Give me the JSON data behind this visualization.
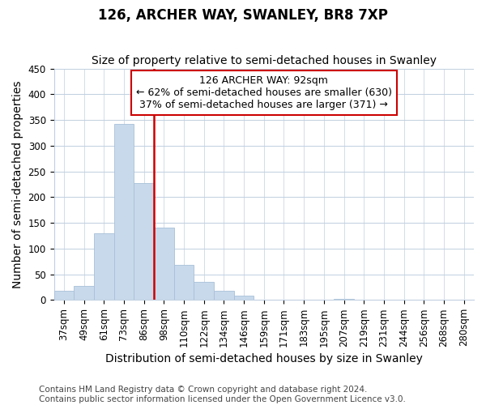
{
  "title": "126, ARCHER WAY, SWANLEY, BR8 7XP",
  "subtitle": "Size of property relative to semi-detached houses in Swanley",
  "xlabel": "Distribution of semi-detached houses by size in Swanley",
  "ylabel": "Number of semi-detached properties",
  "annotation_line1": "126 ARCHER WAY: 92sqm",
  "annotation_line2": "← 62% of semi-detached houses are smaller (630)",
  "annotation_line3": "37% of semi-detached houses are larger (371) →",
  "footer1": "Contains HM Land Registry data © Crown copyright and database right 2024.",
  "footer2": "Contains public sector information licensed under the Open Government Licence v3.0.",
  "bar_color": "#c8d9eb",
  "bar_edge_color": "#a8c0d8",
  "marker_color": "#cc0000",
  "background_color": "#ffffff",
  "plot_bg_color": "#ffffff",
  "categories": [
    "37sqm",
    "49sqm",
    "61sqm",
    "73sqm",
    "86sqm",
    "98sqm",
    "110sqm",
    "122sqm",
    "134sqm",
    "146sqm",
    "159sqm",
    "171sqm",
    "183sqm",
    "195sqm",
    "207sqm",
    "219sqm",
    "231sqm",
    "244sqm",
    "256sqm",
    "268sqm",
    "280sqm"
  ],
  "values": [
    18,
    28,
    130,
    343,
    228,
    141,
    68,
    35,
    18,
    8,
    1,
    0,
    0,
    0,
    2,
    0,
    0,
    0,
    0,
    0,
    1
  ],
  "marker_bin_index": 4,
  "ylim": [
    0,
    450
  ],
  "yticks": [
    0,
    50,
    100,
    150,
    200,
    250,
    300,
    350,
    400,
    450
  ],
  "title_fontsize": 12,
  "subtitle_fontsize": 10,
  "axis_label_fontsize": 10,
  "tick_fontsize": 8.5,
  "annotation_fontsize": 9,
  "footer_fontsize": 7.5
}
